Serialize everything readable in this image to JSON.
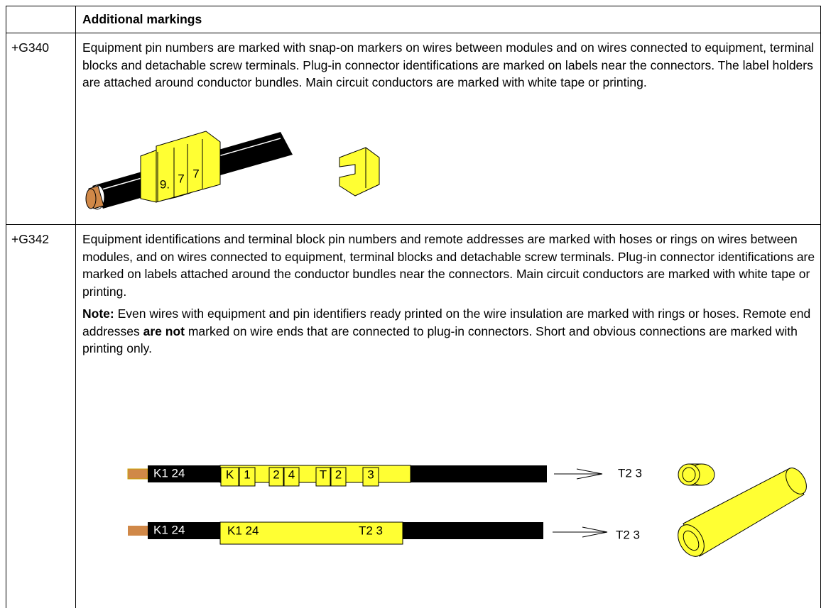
{
  "table": {
    "header": {
      "title": "Additional markings"
    },
    "rows": [
      {
        "code": "+G340",
        "text": "Equipment pin numbers are marked with snap-on markers on wires between modules and on wires connected to equipment, terminal blocks and detachable screw terminals. Plug-in connector identifications are marked on labels near the connectors. The label holders are attached around conductor bundles. Main circuit conductors are marked with white tape or printing.",
        "figure": {
          "markers": [
            "9.",
            "7",
            "7"
          ]
        }
      },
      {
        "code": "+G342",
        "text": "Equipment identifications and terminal block pin numbers and remote addresses are marked with hoses or rings on wires between modules, and on wires connected to equipment, terminal blocks and detachable screw terminals. Plug-in connector identifications are marked on labels attached around the conductor bundles near the connectors. Main circuit conductors are marked with white tape or printing.",
        "note": {
          "label": "Note:",
          "before": "Even wires with equipment and pin identifiers ready printed on the wire insulation are marked with rings or hoses. Remote end addresses",
          "bold": "are not",
          "after": "marked on wire ends that are connected to plug-in connectors. Short and obvious connections are marked with printing only."
        },
        "figure": {
          "wire1": {
            "print": "K1 24",
            "markers": [
              "K",
              "1",
              "2",
              "4",
              "T",
              "2",
              "3"
            ],
            "remote": "T2 3"
          },
          "wire2": {
            "print": "K1 24",
            "label_start": "K1 24",
            "label_end": "T2 3",
            "remote": "T2 3"
          }
        }
      }
    ]
  }
}
